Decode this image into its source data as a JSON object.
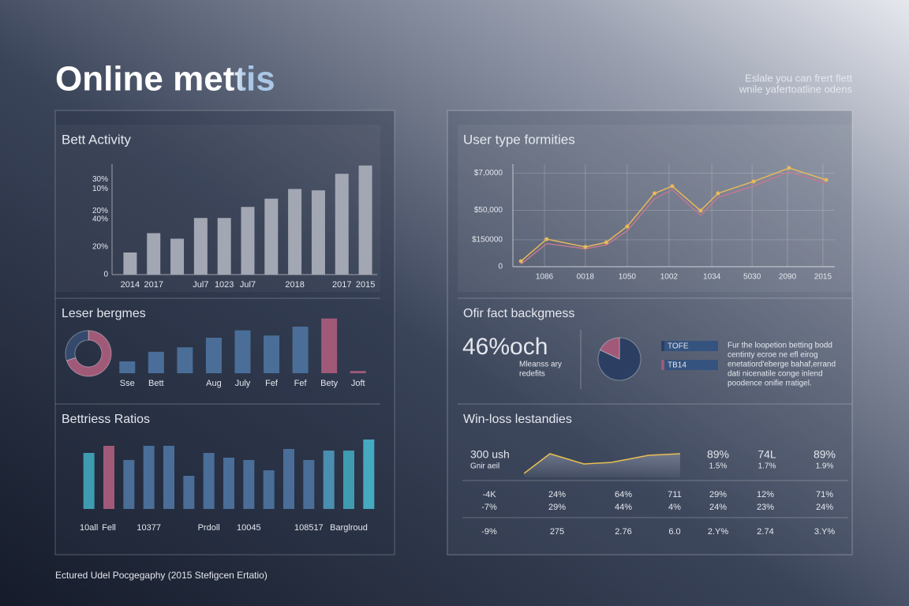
{
  "header": {
    "title": "Online mettis",
    "tagline": [
      "Eslale you can frert flett",
      "wnile yafertoatline odens"
    ]
  },
  "footer": "Ectured Udel Pocgegaphy (2015 Stefigcen Ertatio)",
  "chart_data": [
    {
      "type": "bar",
      "title": "Bett Activity",
      "categories": [
        "2014",
        "2017",
        null,
        "Jul7",
        "1023",
        "Jul7",
        null,
        "2018",
        null,
        "2017",
        "2015"
      ],
      "values": [
        16,
        30,
        26,
        41,
        41,
        49,
        55,
        62,
        61,
        73,
        79
      ],
      "color": "#a3a7b3",
      "ylim": [
        0,
        80
      ],
      "yticks": [
        0,
        {
          "value": 20,
          "label": "20%"
        },
        {
          "value": 40,
          "label": "40%"
        },
        {
          "value": 46,
          "label": "20%"
        },
        {
          "value": 62,
          "label": "10%"
        },
        {
          "value": 69,
          "label": "30%"
        }
      ]
    },
    {
      "type": "bar",
      "title": "Leser bergmes",
      "categories": [
        "Sse",
        "Bett",
        null,
        "Aug",
        "July",
        "Fef",
        "Fef",
        "Bety",
        "Joft"
      ],
      "values": [
        16,
        29,
        35,
        48,
        58,
        51,
        63,
        74,
        3
      ],
      "colors": [
        "#4a6e98",
        "#4a6e98",
        "#4a6e98",
        "#4a6e98",
        "#4a6e98",
        "#4a6e98",
        "#4a6e98",
        "#a05a78",
        "#a05a78"
      ],
      "ylim": [
        0,
        80
      ]
    },
    {
      "type": "donut",
      "values": [
        70,
        30
      ],
      "colors": [
        "#a05a78",
        "#34496b"
      ]
    },
    {
      "type": "bar",
      "title": "Bettriess Ratios",
      "categories": [
        "10all",
        "Fell",
        null,
        "10377",
        null,
        null,
        "Prdoll",
        null,
        "10045",
        null,
        null,
        "108517",
        null,
        "Barglroud",
        null
      ],
      "values": [
        71,
        80,
        62,
        80,
        80,
        42,
        71,
        65,
        62,
        49,
        76,
        62,
        74,
        74,
        88
      ],
      "colors": [
        "#3f9bb0",
        "#a05a78",
        "#4a6e98",
        "#4a6e98",
        "#4a6e98",
        "#4a6e98",
        "#4a6e98",
        "#4a6e98",
        "#4a6e98",
        "#4a6e98",
        "#4a6e98",
        "#4a6e98",
        "#4a8eb0",
        "#3f9bb0",
        "#45a9c0"
      ],
      "ylim": [
        0,
        100
      ]
    },
    {
      "type": "line",
      "title": "User type formities",
      "x": [
        2.5,
        10.5,
        22.5,
        29,
        35.5,
        44,
        49.5,
        58.3,
        63.7,
        74.8,
        85.8,
        97.3
      ],
      "xlim": [
        0,
        100
      ],
      "xticks": [
        {
          "value": 9.8,
          "label": "1086"
        },
        {
          "value": 22.5,
          "label": "0018"
        },
        {
          "value": 35.5,
          "label": "1050"
        },
        {
          "value": 48.5,
          "label": "1002"
        },
        {
          "value": 61.8,
          "label": "1034"
        },
        {
          "value": 74.3,
          "label": "5030"
        },
        {
          "value": 85.3,
          "label": "2090"
        },
        {
          "value": 96.3,
          "label": "2015"
        }
      ],
      "ylim": [
        0,
        80
      ],
      "yticks": [
        0,
        {
          "value": 21,
          "label": "$150000"
        },
        {
          "value": 44,
          "label": "$50,000"
        },
        {
          "value": 73,
          "label": "$7,0000"
        }
      ],
      "grid": true,
      "series": [
        {
          "color": "#c07890",
          "values": [
            2,
            18,
            14,
            17,
            28,
            53,
            60,
            40,
            54,
            63,
            74,
            65
          ]
        },
        {
          "color": "#e8b85a",
          "values": [
            4.3,
            21.5,
            15.4,
            19,
            31.4,
            57.2,
            62.8,
            43.7,
            57.2,
            66.5,
            77,
            67.7
          ]
        }
      ]
    },
    {
      "type": "pie",
      "title": "Ofir fact backgmess",
      "labels": [
        "TOFE",
        "TB14"
      ],
      "values": [
        82,
        18
      ],
      "colors": [
        "#2c3f63",
        "#a05a78"
      ],
      "big_value": "46%och",
      "note": [
        "Mleanss ary",
        "redefits"
      ],
      "description": [
        "Fur the loopetion betting bodd",
        "centinty ecroe ne efl eirog",
        "enetatiord'eberge bahaf,errand",
        "dati nicenatile conge inlend",
        "poodence onifie rratigel."
      ]
    },
    {
      "type": "area",
      "title": "Win-loss lestandies",
      "annotation": "300 ush",
      "sublabel": "Gnir aeil",
      "x": [
        2,
        18,
        39,
        56,
        79,
        98.5
      ],
      "xlim": [
        0,
        100
      ],
      "values": [
        5,
        30,
        17,
        19,
        28,
        30
      ],
      "ylim": [
        0,
        40
      ],
      "color": "#e8c050"
    }
  ],
  "table": {
    "header": [
      "89%",
      "74L",
      "89%"
    ],
    "subheader": [
      "1.5%",
      "1.7%",
      "1.9%"
    ],
    "rows": [
      [
        "-4K",
        "24%",
        "64%",
        "711",
        "29%",
        "12%",
        "71%"
      ],
      [
        "-7%",
        "29%",
        "44%",
        "4%",
        "24%",
        "23%",
        "24%"
      ],
      [
        "-9%",
        "275",
        "2.76",
        "6.0",
        "2.Y%",
        "2.74",
        "3.Y%"
      ]
    ]
  }
}
